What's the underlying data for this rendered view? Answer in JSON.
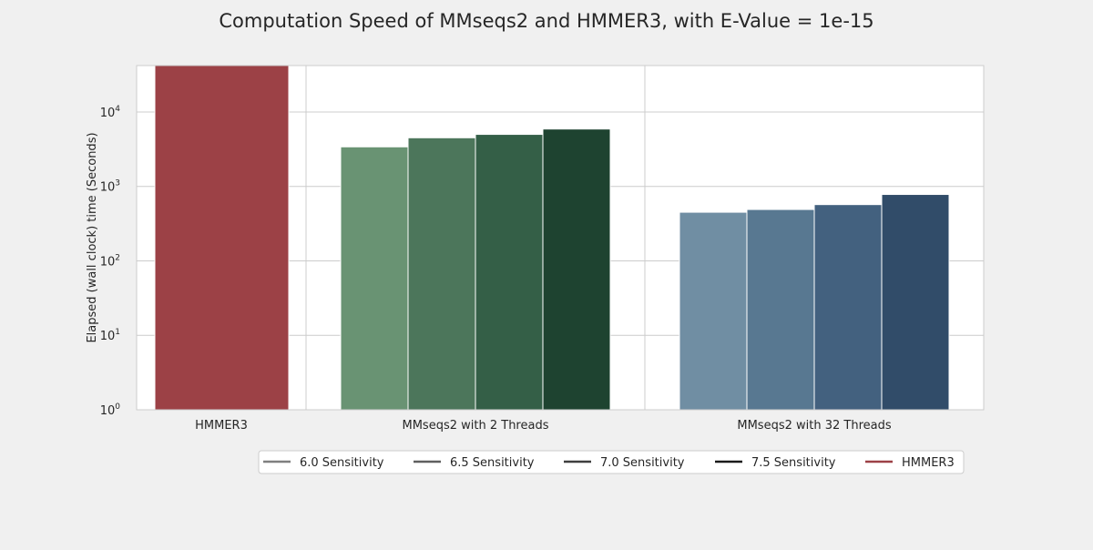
{
  "chart_data": {
    "type": "bar",
    "title": "Computation Speed of MMseqs2 and HMMER3, with E-Value = 1e-15",
    "ylabel": "Elapsed (wall clock) time (Seconds)",
    "xlabel": "",
    "yscale": "log",
    "ylim": [
      1,
      42000
    ],
    "yticks": [
      {
        "value": 1,
        "base": "10",
        "exp": "0"
      },
      {
        "value": 10,
        "base": "10",
        "exp": "1"
      },
      {
        "value": 100,
        "base": "10",
        "exp": "2"
      },
      {
        "value": 1000,
        "base": "10",
        "exp": "3"
      },
      {
        "value": 10000,
        "base": "10",
        "exp": "4"
      }
    ],
    "grid": true,
    "categories": [
      "HMMER3",
      "MMseqs2 with 2 Threads",
      "MMseqs2 with 32 Threads"
    ],
    "groups": [
      {
        "category": "HMMER3",
        "bars": [
          {
            "series": "HMMER3",
            "value": 42000,
            "color": "#9c4146"
          }
        ]
      },
      {
        "category": "MMseqs2 with 2 Threads",
        "bars": [
          {
            "series": "6.0 Sensitivity",
            "value": 3400,
            "color": "#699373"
          },
          {
            "series": "6.5 Sensitivity",
            "value": 4500,
            "color": "#4c765b"
          },
          {
            "series": "7.0 Sensitivity",
            "value": 5000,
            "color": "#345f47"
          },
          {
            "series": "7.5 Sensitivity",
            "value": 5900,
            "color": "#1e4330"
          }
        ]
      },
      {
        "category": "MMseqs2 with 32 Threads",
        "bars": [
          {
            "series": "6.0 Sensitivity",
            "value": 450,
            "color": "#708ea3"
          },
          {
            "series": "6.5 Sensitivity",
            "value": 490,
            "color": "#587891"
          },
          {
            "series": "7.0 Sensitivity",
            "value": 570,
            "color": "#43617f"
          },
          {
            "series": "7.5 Sensitivity",
            "value": 780,
            "color": "#314c69"
          }
        ]
      }
    ],
    "legend": {
      "placement": "bottom-center",
      "entries": [
        {
          "name": "6.0 Sensitivity",
          "color": "#7f7f7f"
        },
        {
          "name": "6.5 Sensitivity",
          "color": "#5f5f5f"
        },
        {
          "name": "7.0 Sensitivity",
          "color": "#3f3f3f"
        },
        {
          "name": "7.5 Sensitivity",
          "color": "#1a1a1a"
        },
        {
          "name": "HMMER3",
          "color": "#9c4146"
        }
      ]
    },
    "colors": {
      "background": "#f0f0f0",
      "plot_area": "#ffffff",
      "grid": "#cccccc",
      "text": "#262626"
    }
  }
}
